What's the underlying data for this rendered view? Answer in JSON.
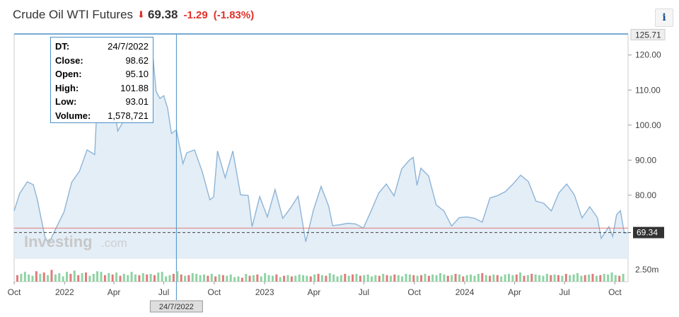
{
  "header": {
    "title": "Crude Oil WTI Futures",
    "price": "69.38",
    "change": "-1.29",
    "change_pct": "(-1.83%)",
    "direction": "down",
    "change_color": "#e0312a"
  },
  "info_button": {
    "label": "i"
  },
  "tooltip": {
    "rows": [
      {
        "key": "DT:",
        "value": "24/7/2022"
      },
      {
        "key": "Close:",
        "value": "98.62"
      },
      {
        "key": "Open:",
        "value": "95.10"
      },
      {
        "key": "High:",
        "value": "101.88"
      },
      {
        "key": "Low:",
        "value": "93.01"
      },
      {
        "key": "Volume:",
        "value": "1,578,721"
      }
    ]
  },
  "watermark": {
    "brand": "Investing",
    "suffix": ".com"
  },
  "chart_data": {
    "type": "area",
    "x_start": "2021-10-01",
    "x_end": "2024-10-25",
    "x_ticks": [
      {
        "label": "Oct",
        "date": "2021-10-01"
      },
      {
        "label": "2022",
        "date": "2022-01-01"
      },
      {
        "label": "Apr",
        "date": "2022-04-01"
      },
      {
        "label": "Jul",
        "date": "2022-07-01"
      },
      {
        "label": "Oct",
        "date": "2022-10-01"
      },
      {
        "label": "2023",
        "date": "2023-01-01"
      },
      {
        "label": "Apr",
        "date": "2023-04-01"
      },
      {
        "label": "Jul",
        "date": "2023-07-01"
      },
      {
        "label": "Oct",
        "date": "2023-10-01"
      },
      {
        "label": "2024",
        "date": "2024-01-01"
      },
      {
        "label": "Apr",
        "date": "2024-04-01"
      },
      {
        "label": "Jul",
        "date": "2024-07-01"
      },
      {
        "label": "Oct",
        "date": "2024-10-01"
      }
    ],
    "y_ticks": [
      "80.00",
      "90.00",
      "100.00",
      "110.00",
      "120.00"
    ],
    "y_ticks_values": [
      80,
      90,
      100,
      110,
      120
    ],
    "ylim": [
      62,
      126
    ],
    "max_label": "125.71",
    "max_value": 125.71,
    "current_label": "69.34",
    "current_value": 69.34,
    "prev_close_value": 70.6,
    "crosshair": {
      "date": "2022-07-24",
      "label": "24/7/2022"
    },
    "volume_label": "2.50m",
    "volume_max_value": 2500000,
    "series": [
      {
        "values": [
          [
            "2021-10-01",
            75.5
          ],
          [
            "2021-10-11",
            80.5
          ],
          [
            "2021-10-25",
            83.8
          ],
          [
            "2021-11-05",
            83.0
          ],
          [
            "2021-11-12",
            79.0
          ],
          [
            "2021-11-26",
            68.2
          ],
          [
            "2021-12-03",
            66.2
          ],
          [
            "2021-12-17",
            70.8
          ],
          [
            "2021-12-31",
            75.2
          ],
          [
            "2022-01-14",
            83.7
          ],
          [
            "2022-01-28",
            86.8
          ],
          [
            "2022-02-11",
            92.9
          ],
          [
            "2022-02-25",
            91.6
          ],
          [
            "2022-03-04",
            115.6
          ],
          [
            "2022-03-11",
            109.4
          ],
          [
            "2022-03-18",
            104.7
          ],
          [
            "2022-03-25",
            113.9
          ],
          [
            "2022-04-08",
            98.3
          ],
          [
            "2022-04-22",
            102.1
          ],
          [
            "2022-05-06",
            109.8
          ],
          [
            "2022-05-20",
            110.3
          ],
          [
            "2022-06-10",
            121.6
          ],
          [
            "2022-06-17",
            109.6
          ],
          [
            "2022-06-24",
            107.6
          ],
          [
            "2022-07-01",
            108.4
          ],
          [
            "2022-07-08",
            104.8
          ],
          [
            "2022-07-15",
            97.6
          ],
          [
            "2022-07-24",
            98.6
          ],
          [
            "2022-08-05",
            89.0
          ],
          [
            "2022-08-12",
            92.1
          ],
          [
            "2022-08-26",
            92.9
          ],
          [
            "2022-09-09",
            86.8
          ],
          [
            "2022-09-23",
            78.7
          ],
          [
            "2022-09-30",
            79.5
          ],
          [
            "2022-10-07",
            92.6
          ],
          [
            "2022-10-21",
            85.0
          ],
          [
            "2022-11-04",
            92.6
          ],
          [
            "2022-11-18",
            80.1
          ],
          [
            "2022-12-02",
            79.9
          ],
          [
            "2022-12-09",
            71.0
          ],
          [
            "2022-12-23",
            79.6
          ],
          [
            "2023-01-06",
            73.8
          ],
          [
            "2023-01-20",
            81.6
          ],
          [
            "2023-02-03",
            73.4
          ],
          [
            "2023-02-17",
            76.3
          ],
          [
            "2023-03-03",
            79.7
          ],
          [
            "2023-03-17",
            66.7
          ],
          [
            "2023-03-31",
            75.7
          ],
          [
            "2023-04-14",
            82.5
          ],
          [
            "2023-04-28",
            76.8
          ],
          [
            "2023-05-05",
            71.3
          ],
          [
            "2023-05-19",
            71.6
          ],
          [
            "2023-06-02",
            72.0
          ],
          [
            "2023-06-16",
            71.8
          ],
          [
            "2023-06-30",
            70.6
          ],
          [
            "2023-07-14",
            75.4
          ],
          [
            "2023-07-28",
            80.6
          ],
          [
            "2023-08-11",
            83.2
          ],
          [
            "2023-08-25",
            79.8
          ],
          [
            "2023-09-08",
            87.5
          ],
          [
            "2023-09-22",
            90.0
          ],
          [
            "2023-09-29",
            90.8
          ],
          [
            "2023-10-06",
            82.8
          ],
          [
            "2023-10-13",
            87.7
          ],
          [
            "2023-10-27",
            85.5
          ],
          [
            "2023-11-10",
            77.2
          ],
          [
            "2023-11-24",
            75.5
          ],
          [
            "2023-12-08",
            71.2
          ],
          [
            "2023-12-22",
            73.6
          ],
          [
            "2024-01-05",
            73.8
          ],
          [
            "2024-01-19",
            73.4
          ],
          [
            "2024-02-02",
            72.3
          ],
          [
            "2024-02-16",
            79.2
          ],
          [
            "2024-03-01",
            79.9
          ],
          [
            "2024-03-15",
            81.0
          ],
          [
            "2024-03-29",
            83.2
          ],
          [
            "2024-04-12",
            85.7
          ],
          [
            "2024-04-26",
            83.9
          ],
          [
            "2024-05-10",
            78.3
          ],
          [
            "2024-05-24",
            77.7
          ],
          [
            "2024-06-07",
            75.5
          ],
          [
            "2024-06-21",
            80.7
          ],
          [
            "2024-07-05",
            83.2
          ],
          [
            "2024-07-19",
            80.1
          ],
          [
            "2024-08-02",
            73.5
          ],
          [
            "2024-08-16",
            76.7
          ],
          [
            "2024-08-30",
            73.6
          ],
          [
            "2024-09-06",
            67.7
          ],
          [
            "2024-09-20",
            71.0
          ],
          [
            "2024-09-27",
            68.2
          ],
          [
            "2024-10-04",
            74.4
          ],
          [
            "2024-10-11",
            75.6
          ],
          [
            "2024-10-18",
            69.2
          ],
          [
            "2024-10-25",
            69.3
          ]
        ]
      }
    ],
    "volume": [
      1.0,
      1.2,
      1.5,
      1.1,
      0.9,
      1.6,
      1.2,
      1.4,
      1.0,
      1.8,
      1.1,
      1.3,
      0.8,
      1.5,
      1.2,
      1.7,
      1.0,
      1.3,
      1.4,
      0.9,
      1.2,
      1.6,
      1.5,
      1.0,
      1.3,
      1.1,
      1.4,
      0.9,
      1.2,
      1.0,
      1.5,
      1.1,
      1.0,
      1.3,
      1.1,
      1.2,
      1.0,
      1.4,
      1.5,
      0.8,
      1.0,
      1.2,
      1.6,
      1.1,
      0.9,
      1.0,
      1.3,
      1.2,
      1.0,
      1.1,
      0.9,
      1.2,
      0.8,
      1.1,
      1.0,
      0.9,
      1.1,
      0.7,
      0.8,
      0.6,
      1.2,
      0.9,
      1.0,
      1.1,
      0.8,
      1.3,
      1.0,
      0.9,
      1.1,
      0.7,
      0.9,
      1.0,
      0.8,
      0.9,
      1.1,
      1.0,
      0.9,
      0.8,
      1.1,
      1.2,
      1.0,
      0.9,
      1.3,
      1.1,
      0.8,
      1.0,
      1.2,
      0.9,
      1.1,
      1.2,
      0.9,
      1.0,
      1.1,
      0.8,
      1.0,
      0.9,
      1.2,
      1.0,
      0.9,
      1.1,
      1.0,
      0.8,
      1.2,
      1.1,
      1.0,
      0.9,
      1.0,
      1.2,
      0.9,
      1.1,
      1.0,
      1.3,
      1.1,
      0.9,
      1.0,
      1.2,
      1.1,
      0.8,
      1.0,
      1.1,
      0.9,
      1.2,
      1.3,
      1.0,
      0.9,
      1.1,
      1.0,
      0.8,
      1.1,
      1.2,
      1.0,
      1.1,
      1.4,
      0.9,
      1.0,
      1.2,
      1.1,
      1.0,
      0.9,
      1.2,
      1.0,
      1.1,
      1.0,
      0.9,
      1.2,
      1.0,
      1.1,
      1.3,
      0.9,
      1.0,
      1.1,
      1.2,
      0.9,
      1.0,
      1.2,
      1.1,
      1.4,
      1.0,
      0.9,
      1.2
    ],
    "colors": {
      "line": "#8db4d6",
      "fill": "#e4eef7",
      "volume_up": "#8fd3a4",
      "volume_down": "#e07b7b",
      "prev_close": "#e07b7b",
      "crosshair": "#4a90c9",
      "top_line": "#4a90c9"
    }
  }
}
